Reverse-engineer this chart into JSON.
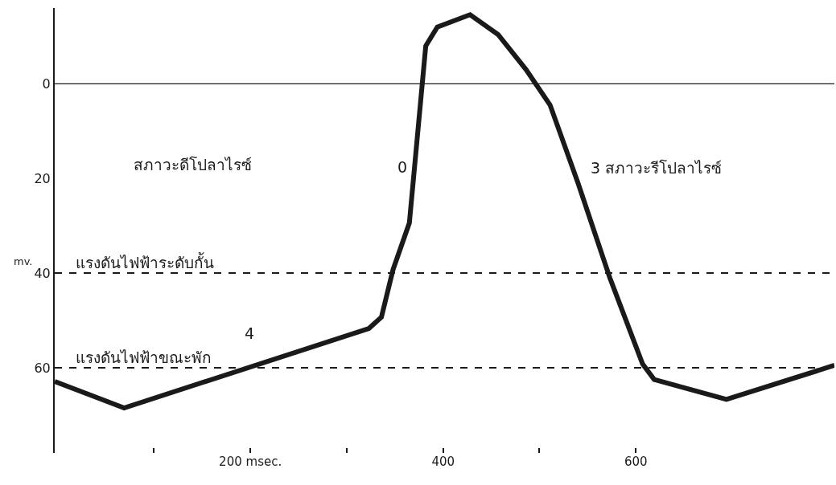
{
  "chart_data": {
    "type": "line",
    "x": [
      -3,
      69,
      323,
      336,
      348,
      365,
      382,
      394,
      428,
      457,
      486,
      511,
      540,
      573,
      607,
      619,
      694,
      806
    ],
    "series": [
      {
        "color": "#1a1a1a",
        "values": [
          62.9,
          68.5,
          51.7,
          49.3,
          39.3,
          29.4,
          -8,
          -12,
          -14.6,
          -10.4,
          -3,
          4.5,
          21,
          41,
          59.2,
          62.5,
          66.7,
          59.5
        ]
      }
    ],
    "ylabel": "mv.",
    "xlim": [
      -3,
      806
    ],
    "xticks": [
      {
        "value": 100,
        "label": null
      },
      {
        "value": 200,
        "label": "200 msec."
      },
      {
        "value": 300,
        "label": null
      },
      400,
      {
        "value": 500,
        "label": null
      },
      600
    ],
    "ylim": [
      78,
      -16
    ],
    "yticks": [
      0,
      20,
      40,
      60
    ],
    "marker": "none",
    "line_style": "solid",
    "ref_lines": [
      {
        "axis": "y",
        "value": 0,
        "label": null,
        "color": "#1a1a1a",
        "line_style": "solid"
      },
      {
        "axis": "y",
        "value": 40,
        "label": "แรงดันไฟฟ้าระดับกั้น",
        "color": "#1a1a1a",
        "line_style": "dashed"
      },
      {
        "axis": "y",
        "value": 60,
        "label": "แรงดันไฟฟ้าขณะพัก",
        "color": "#1a1a1a",
        "line_style": "dashed"
      }
    ],
    "annotations": [
      "สภาวะดีโปลาไรซ์",
      "0",
      "3 สภาวะรีโปลาไรซ์",
      "4"
    ]
  }
}
